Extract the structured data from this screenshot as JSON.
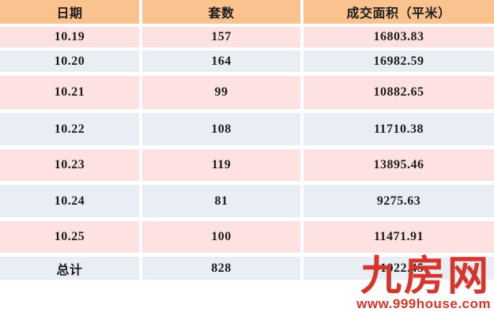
{
  "chart_data": {
    "type": "table",
    "columns": [
      "日期",
      "套数",
      "成交面积（平米）"
    ],
    "rows": [
      [
        "10.19",
        157,
        16803.83
      ],
      [
        "10.20",
        164,
        16982.59
      ],
      [
        "10.21",
        99,
        10882.65
      ],
      [
        "10.22",
        108,
        11710.38
      ],
      [
        "10.23",
        119,
        13895.46
      ],
      [
        "10.24",
        81,
        9275.63
      ],
      [
        "10.25",
        100,
        11471.91
      ],
      [
        "总计",
        828,
        91022.45
      ]
    ],
    "layout_hints": {
      "header_band_color": "#F9C28F",
      "odd_row_color": "#FDE2E1",
      "even_row_color": "#E9EDF4",
      "grid": "white separators"
    }
  },
  "table": {
    "headers": [
      "日期",
      "套数",
      "成交面积（平米）"
    ],
    "rows": [
      {
        "date": "10.19",
        "count": "157",
        "area": "16803.83"
      },
      {
        "date": "10.20",
        "count": "164",
        "area": "16982.59"
      },
      {
        "date": "10.21",
        "count": "99",
        "area": "10882.65"
      },
      {
        "date": "10.22",
        "count": "108",
        "area": "11710.38"
      },
      {
        "date": "10.23",
        "count": "119",
        "area": "13895.46"
      },
      {
        "date": "10.24",
        "count": "81",
        "area": "9275.63"
      },
      {
        "date": "10.25",
        "count": "100",
        "area": "11471.91"
      }
    ],
    "total": {
      "label": "总计",
      "count": "828",
      "area": "91022.45"
    }
  },
  "watermark": {
    "logo": "九房网",
    "url": "www.999house.com"
  },
  "colors": {
    "header_bg": "#F9C28F",
    "row_pink": "#FDE2E1",
    "row_blue": "#E9EDF4",
    "text": "#1C1C1C",
    "watermark_red": "#D5352B",
    "background": "#FFFFFF"
  }
}
